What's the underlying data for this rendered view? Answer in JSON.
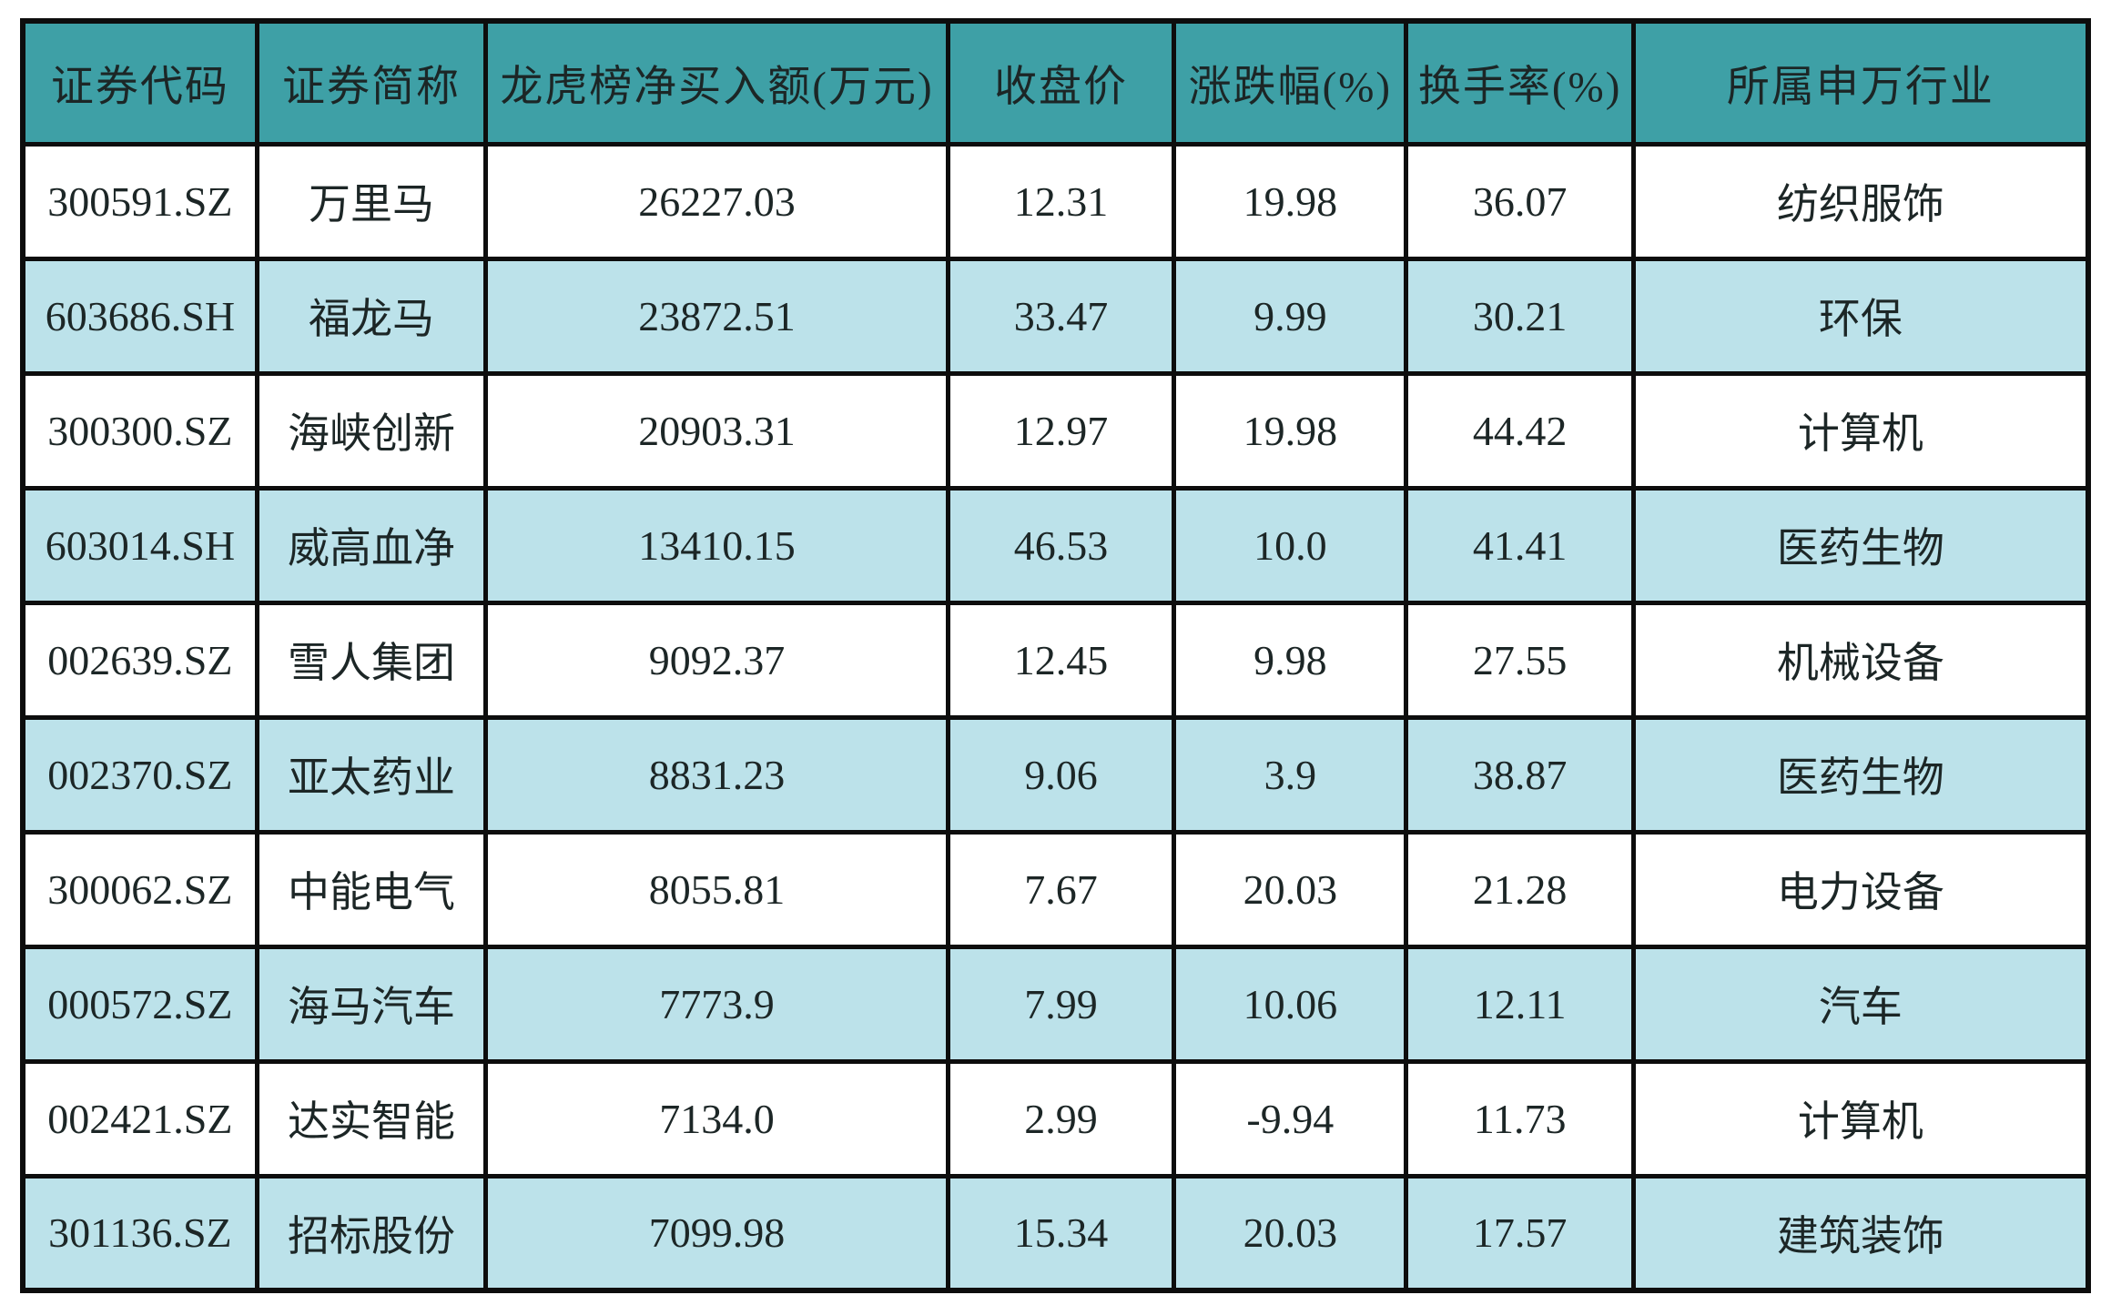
{
  "chart_data": {
    "type": "table",
    "columns": [
      "证券代码",
      "证券简称",
      "龙虎榜净买入额(万元)",
      "收盘价",
      "涨跌幅(%)",
      "换手率(%)",
      "所属申万行业"
    ],
    "rows": [
      [
        "300591.SZ",
        "万里马",
        "26227.03",
        "12.31",
        "19.98",
        "36.07",
        "纺织服饰"
      ],
      [
        "603686.SH",
        "福龙马",
        "23872.51",
        "33.47",
        "9.99",
        "30.21",
        "环保"
      ],
      [
        "300300.SZ",
        "海峡创新",
        "20903.31",
        "12.97",
        "19.98",
        "44.42",
        "计算机"
      ],
      [
        "603014.SH",
        "威高血净",
        "13410.15",
        "46.53",
        "10.0",
        "41.41",
        "医药生物"
      ],
      [
        "002639.SZ",
        "雪人集团",
        "9092.37",
        "12.45",
        "9.98",
        "27.55",
        "机械设备"
      ],
      [
        "002370.SZ",
        "亚太药业",
        "8831.23",
        "9.06",
        "3.9",
        "38.87",
        "医药生物"
      ],
      [
        "300062.SZ",
        "中能电气",
        "8055.81",
        "7.67",
        "20.03",
        "21.28",
        "电力设备"
      ],
      [
        "000572.SZ",
        "海马汽车",
        "7773.9",
        "7.99",
        "10.06",
        "12.11",
        "汽车"
      ],
      [
        "002421.SZ",
        "达实智能",
        "7134.0",
        "2.99",
        "-9.94",
        "11.73",
        "计算机"
      ],
      [
        "301136.SZ",
        "招标股份",
        "7099.98",
        "15.34",
        "20.03",
        "17.57",
        "建筑装饰"
      ]
    ],
    "layout": {
      "zebra_striping": true,
      "first_data_row_background": "white",
      "all_cells_centered": true
    },
    "colors": {
      "header_bg": "#3EA0A6",
      "stripe_row_bg": "#BCE2EA",
      "plain_row_bg": "#FFFFFF",
      "border": "#0D0D0D",
      "text": "#1C2626"
    }
  }
}
